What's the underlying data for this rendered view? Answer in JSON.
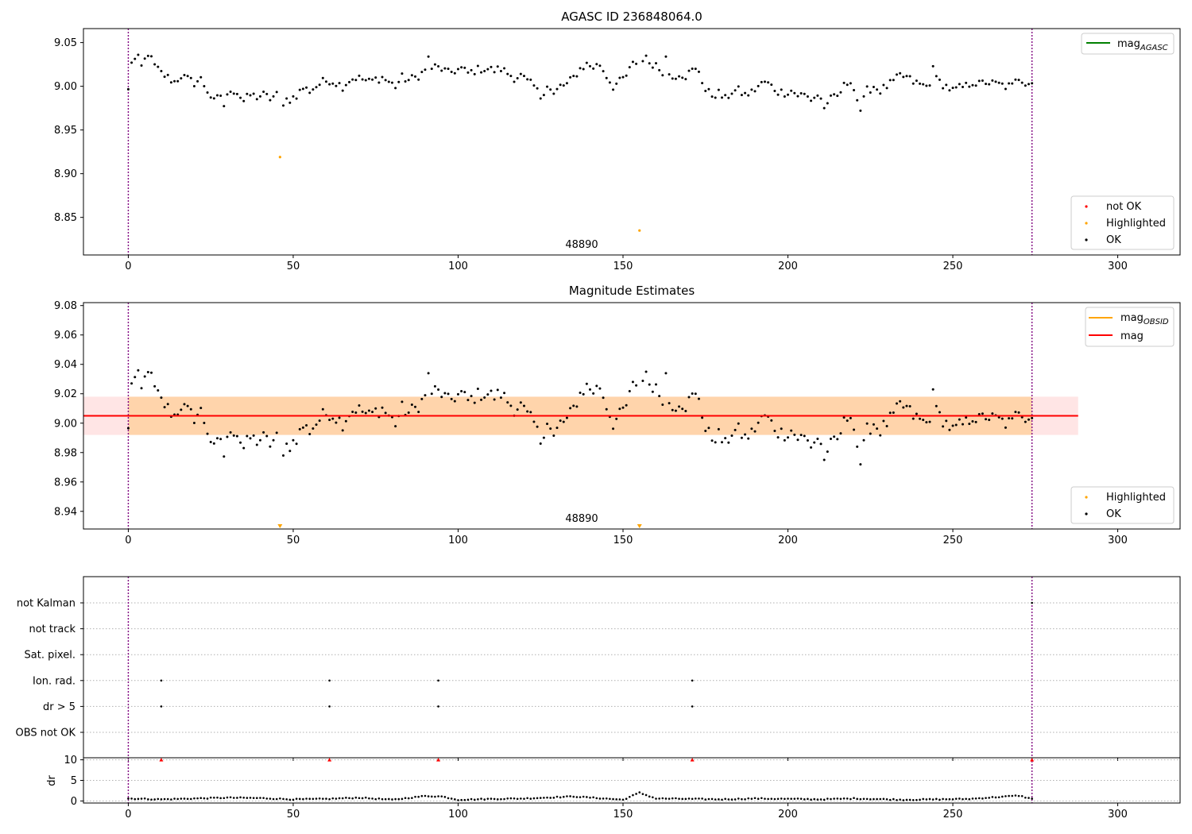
{
  "chart_data": [
    {
      "type": "scatter",
      "title": "AGASC ID 236848064.0",
      "xlim": [
        -13.6,
        318.9
      ],
      "ylim": [
        8.807,
        9.066
      ],
      "xticks": [
        0,
        50,
        100,
        150,
        200,
        250,
        300
      ],
      "yticks": [
        8.85,
        8.9,
        8.95,
        9.0,
        9.05
      ],
      "vlines": [
        0,
        274
      ],
      "annotation": {
        "text": "48890",
        "x": 137,
        "y": 8.812
      },
      "legend_lines": [
        {
          "label_main": "mag",
          "label_sub": "AGASC",
          "color": "#008000"
        }
      ],
      "legend_points": [
        {
          "label": "not OK",
          "color": "#ff0000"
        },
        {
          "label": "Highlighted",
          "color": "#ffa500"
        },
        {
          "label": "OK",
          "color": "#000000"
        }
      ],
      "highlighted": [
        {
          "x": 46,
          "y": 8.919
        },
        {
          "x": 155,
          "y": 8.835
        }
      ],
      "ok_anchors": [
        [
          0,
          8.995
        ],
        [
          1,
          9.029
        ],
        [
          3,
          9.031
        ],
        [
          4,
          9.022
        ],
        [
          6,
          9.038
        ],
        [
          8,
          9.023
        ],
        [
          10,
          9.015
        ],
        [
          12,
          9.01
        ],
        [
          14,
          9.005
        ],
        [
          16,
          9.012
        ],
        [
          18,
          9.008
        ],
        [
          20,
          9.004
        ],
        [
          22,
          9.008
        ],
        [
          24,
          8.995
        ],
        [
          26,
          8.982
        ],
        [
          28,
          8.99
        ],
        [
          29,
          8.978
        ],
        [
          31,
          8.997
        ],
        [
          33,
          8.993
        ],
        [
          35,
          8.983
        ],
        [
          37,
          8.99
        ],
        [
          39,
          8.988
        ],
        [
          41,
          8.99
        ],
        [
          43,
          8.986
        ],
        [
          45,
          8.99
        ],
        [
          47,
          8.983
        ],
        [
          49,
          8.985
        ],
        [
          51,
          8.99
        ],
        [
          53,
          8.998
        ],
        [
          55,
          8.995
        ],
        [
          57,
          9.0
        ],
        [
          59,
          9.005
        ],
        [
          61,
          9.007
        ],
        [
          63,
          9.004
        ],
        [
          65,
          9.0
        ],
        [
          67,
          9.007
        ],
        [
          69,
          9.01
        ],
        [
          71,
          9.008
        ],
        [
          73,
          9.005
        ],
        [
          75,
          9.008
        ],
        [
          77,
          9.01
        ],
        [
          79,
          9.005
        ],
        [
          81,
          9.0
        ],
        [
          83,
          9.01
        ],
        [
          85,
          9.007
        ],
        [
          87,
          9.01
        ],
        [
          89,
          9.015
        ],
        [
          91,
          9.02
        ],
        [
          93,
          9.022
        ],
        [
          95,
          9.02
        ],
        [
          97,
          9.015
        ],
        [
          99,
          9.018
        ],
        [
          101,
          9.02
        ],
        [
          103,
          9.015
        ],
        [
          105,
          9.018
        ],
        [
          107,
          9.02
        ],
        [
          109,
          9.02
        ],
        [
          111,
          9.018
        ],
        [
          113,
          9.02
        ],
        [
          115,
          9.015
        ],
        [
          117,
          9.01
        ],
        [
          119,
          9.012
        ],
        [
          121,
          9.005
        ],
        [
          123,
          9.0
        ],
        [
          125,
          8.988
        ],
        [
          127,
          9.002
        ],
        [
          129,
          8.99
        ],
        [
          131,
          9.0
        ],
        [
          133,
          9.002
        ],
        [
          135,
          9.01
        ],
        [
          137,
          9.02
        ],
        [
          139,
          9.025
        ],
        [
          141,
          9.022
        ],
        [
          143,
          9.025
        ],
        [
          145,
          9.012
        ],
        [
          147,
          9.0
        ],
        [
          149,
          9.005
        ],
        [
          151,
          9.012
        ],
        [
          153,
          9.025
        ],
        [
          155,
          9.03
        ],
        [
          157,
          9.028
        ],
        [
          159,
          9.025
        ],
        [
          161,
          9.02
        ],
        [
          163,
          9.015
        ],
        [
          165,
          9.01
        ],
        [
          167,
          9.015
        ],
        [
          169,
          9.012
        ],
        [
          171,
          9.018
        ],
        [
          173,
          9.018
        ],
        [
          175,
          8.995
        ],
        [
          177,
          8.99
        ],
        [
          179,
          8.992
        ],
        [
          181,
          8.985
        ],
        [
          183,
          8.994
        ],
        [
          185,
          8.995
        ],
        [
          187,
          8.99
        ],
        [
          189,
          8.993
        ],
        [
          191,
          9.0
        ],
        [
          193,
          9.005
        ],
        [
          195,
          9.0
        ],
        [
          197,
          8.994
        ],
        [
          199,
          8.993
        ],
        [
          201,
          8.995
        ],
        [
          203,
          8.99
        ],
        [
          205,
          8.99
        ],
        [
          207,
          8.985
        ],
        [
          209,
          8.99
        ],
        [
          211,
          8.98
        ],
        [
          213,
          8.985
        ],
        [
          215,
          8.988
        ],
        [
          217,
          9.0
        ],
        [
          219,
          9.008
        ],
        [
          221,
          8.985
        ],
        [
          222,
          8.973
        ],
        [
          224,
          8.995
        ],
        [
          226,
          9.0
        ],
        [
          228,
          8.995
        ],
        [
          230,
          9.0
        ],
        [
          232,
          9.005
        ],
        [
          234,
          9.012
        ],
        [
          236,
          9.01
        ],
        [
          238,
          9.005
        ],
        [
          240,
          9.002
        ],
        [
          242,
          9.0
        ],
        [
          244,
          9.01
        ],
        [
          246,
          9.005
        ],
        [
          248,
          9.0
        ],
        [
          250,
          8.995
        ],
        [
          252,
          8.998
        ],
        [
          254,
          9.0
        ],
        [
          256,
          9.005
        ],
        [
          258,
          9.002
        ],
        [
          260,
          9.005
        ],
        [
          262,
          9.003
        ],
        [
          264,
          9.002
        ],
        [
          266,
          9.0
        ],
        [
          268,
          9.0
        ],
        [
          270,
          9.01
        ],
        [
          272,
          9.005
        ],
        [
          274,
          9.005
        ]
      ],
      "ok_extremes": [
        [
          47,
          8.978
        ],
        [
          91,
          9.034
        ],
        [
          157,
          9.035
        ],
        [
          163,
          9.034
        ],
        [
          211,
          8.975
        ],
        [
          222,
          8.972
        ],
        [
          244,
          9.023
        ]
      ]
    },
    {
      "type": "scatter",
      "title": "Magnitude Estimates",
      "xlim": [
        -13.6,
        318.9
      ],
      "ylim": [
        8.928,
        9.082
      ],
      "xticks": [
        0,
        50,
        100,
        150,
        200,
        250,
        300
      ],
      "yticks": [
        8.94,
        8.96,
        8.98,
        9.0,
        9.02,
        9.04,
        9.06,
        9.08
      ],
      "vlines": [
        0,
        274
      ],
      "annotation": {
        "text": "48890",
        "x": 137,
        "y": 8.933
      },
      "mag_line": 9.005,
      "band": {
        "lo": 8.992,
        "hi": 9.018,
        "x_end": 288
      },
      "highlighted_markers": [
        46,
        155
      ],
      "legend_lines": [
        {
          "label_main": "mag",
          "label_sub": "OBSID",
          "color": "#ffa500"
        },
        {
          "label_main": "mag",
          "label_sub": "",
          "color": "#ff0000"
        }
      ],
      "legend_points": [
        {
          "label": "Highlighted",
          "color": "#ffa500"
        },
        {
          "label": "OK",
          "color": "#000000"
        }
      ]
    },
    {
      "type": "scatter",
      "title": "",
      "xlim": [
        -13.6,
        318.9
      ],
      "xticks": [
        0,
        50,
        100,
        150,
        200,
        250,
        300
      ],
      "vlines": [
        0,
        274
      ],
      "flag_rows": [
        "not Kalman",
        "not track",
        "Sat. pixel.",
        "Ion. rad.",
        "dr > 5",
        "OBS not OK"
      ],
      "flag_points": [
        {
          "row": "Ion. rad.",
          "x": [
            10,
            61,
            94,
            171
          ]
        },
        {
          "row": "dr > 5",
          "x": [
            10,
            61,
            94,
            171
          ]
        },
        {
          "row": "not Kalman",
          "x": [
            274
          ]
        }
      ]
    },
    {
      "type": "scatter",
      "title": "",
      "ylabel": "dr",
      "xlim": [
        -13.6,
        318.9
      ],
      "ylim": [
        -0.5,
        10.5
      ],
      "yticks": [
        0,
        5,
        10
      ],
      "xticks": [
        0,
        50,
        100,
        150,
        200,
        250,
        300
      ],
      "vlines": [
        0,
        274
      ],
      "dr_outliers_x": [
        10,
        61,
        94,
        171,
        274
      ],
      "dr_outlier_value": 10,
      "dr_anchors": [
        [
          0,
          0.6
        ],
        [
          10,
          0.4
        ],
        [
          20,
          0.6
        ],
        [
          30,
          0.8
        ],
        [
          40,
          0.7
        ],
        [
          50,
          0.4
        ],
        [
          60,
          0.5
        ],
        [
          70,
          0.8
        ],
        [
          80,
          0.3
        ],
        [
          90,
          1.2
        ],
        [
          95,
          1.1
        ],
        [
          100,
          0.3
        ],
        [
          110,
          0.5
        ],
        [
          120,
          0.6
        ],
        [
          135,
          1.1
        ],
        [
          150,
          0.3
        ],
        [
          155,
          2.0
        ],
        [
          160,
          0.6
        ],
        [
          170,
          0.5
        ],
        [
          180,
          0.4
        ],
        [
          190,
          0.6
        ],
        [
          200,
          0.5
        ],
        [
          210,
          0.4
        ],
        [
          220,
          0.6
        ],
        [
          235,
          0.3
        ],
        [
          245,
          0.4
        ],
        [
          255,
          0.5
        ],
        [
          270,
          1.3
        ],
        [
          274,
          0.5
        ]
      ]
    }
  ]
}
